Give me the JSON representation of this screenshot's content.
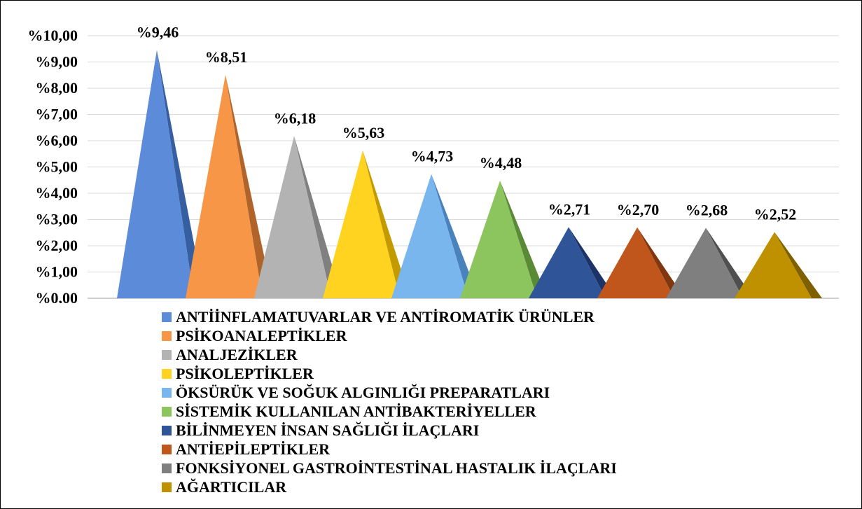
{
  "chart_data": {
    "type": "bar",
    "bar_shape": "pyramid",
    "categories": [
      "ANTİİNFLAMATUVARLAR VE ANTİROMATİK ÜRÜNLER",
      "PSİKOANALEPTİKLER",
      "ANALJEZİKLER",
      "PSİKOLEPTİKLER",
      "ÖKSÜRÜK VE SOĞUK ALGINLIĞI PREPARATLARI",
      "SİSTEMİK KULLANILAN ANTİBAKTERİYELLER",
      "BİLİNMEYEN İNSAN SAĞLIĞI İLAÇLARI",
      "ANTİEPİLEPTİKLER",
      "FONKSİYONEL GASTROİNTESTİNAL HASTALIK İLAÇLARI",
      "AĞARTICILAR"
    ],
    "values": [
      9.46,
      8.51,
      6.18,
      5.63,
      4.73,
      4.48,
      2.71,
      2.7,
      2.68,
      2.52
    ],
    "data_labels": [
      "%9,46",
      "%8,51",
      "%6,18",
      "%5,63",
      "%4,73",
      "%4,48",
      "%2,71",
      "%2,70",
      "%2,68",
      "%2,52"
    ],
    "colors": [
      "#5B8BD9",
      "#F79646",
      "#B3B3B3",
      "#FFD320",
      "#7AB6EE",
      "#8CC55E",
      "#2F5497",
      "#C0561C",
      "#7F7F7F",
      "#BF9000"
    ],
    "side_colors": [
      "#355FA0",
      "#B0642A",
      "#808080",
      "#C39B00",
      "#4A82BB",
      "#5A8A36",
      "#1B3366",
      "#803710",
      "#4F4F4F",
      "#7F6000"
    ],
    "yticks": [
      0,
      1,
      2,
      3,
      4,
      5,
      6,
      7,
      8,
      9,
      10
    ],
    "ytick_labels": [
      "%0,00",
      "%1,00",
      "%2,00",
      "%3,00",
      "%4,00",
      "%5,00",
      "%6,00",
      "%7,00",
      "%8,00",
      "%9,00",
      "%10,00"
    ],
    "ylim": [
      0,
      10
    ],
    "grid": true,
    "legend": "bottom",
    "title": "",
    "xlabel": "",
    "ylabel": ""
  }
}
